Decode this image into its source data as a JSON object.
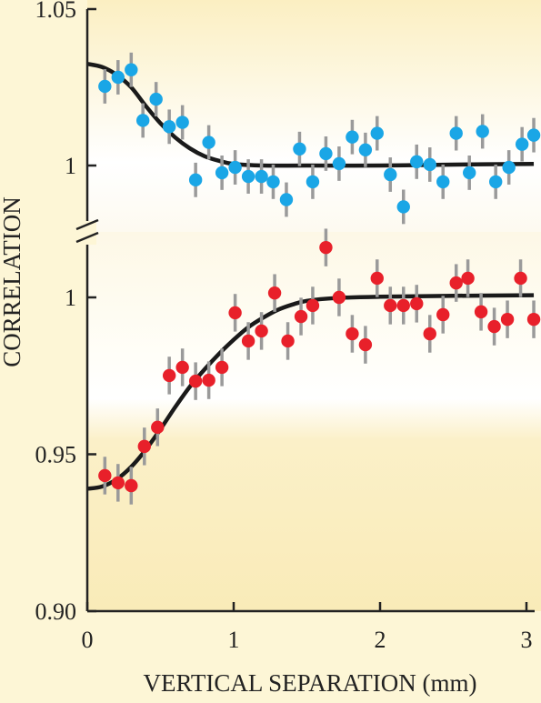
{
  "chart_data": [
    {
      "panel": "upper",
      "type": "scatter",
      "xlabel": "VERTICAL SEPARATION (mm)",
      "ylabel": "CORRELATION",
      "xlim": [
        0,
        3.05
      ],
      "ylim": [
        0.97,
        1.05
      ],
      "x_ticks": [
        {
          "value": 0,
          "label": "0"
        },
        {
          "value": 1,
          "label": "1"
        },
        {
          "value": 2,
          "label": "2"
        },
        {
          "value": 3,
          "label": "3"
        }
      ],
      "y_ticks": [
        {
          "value": 1.05,
          "label": "1.05"
        },
        {
          "value": 1.0,
          "label": "1"
        }
      ],
      "point_color": "#1aa6e6",
      "errorbar_color": "#9a9a9a",
      "fit_color": "#1a1a1a",
      "fit_curve": {
        "x": [
          0,
          0.1,
          0.2,
          0.3,
          0.4,
          0.5,
          0.6,
          0.7,
          0.8,
          0.9,
          1.0,
          1.2,
          1.5,
          2.0,
          2.5,
          3.05
        ],
        "y": [
          1.0325,
          1.0315,
          1.029,
          1.025,
          1.019,
          1.0135,
          1.009,
          1.0055,
          1.003,
          1.0015,
          1.0005,
          1.0,
          1.0,
          1.0,
          1.0003,
          1.0005
        ]
      },
      "points": [
        {
          "x": 0.12,
          "y": 1.0253,
          "err": 0.0055
        },
        {
          "x": 0.21,
          "y": 1.0282,
          "err": 0.0055
        },
        {
          "x": 0.3,
          "y": 1.0306,
          "err": 0.0055
        },
        {
          "x": 0.38,
          "y": 1.0144,
          "err": 0.0055
        },
        {
          "x": 0.47,
          "y": 1.0212,
          "err": 0.0055
        },
        {
          "x": 0.56,
          "y": 1.0124,
          "err": 0.0055
        },
        {
          "x": 0.65,
          "y": 1.0138,
          "err": 0.0055
        },
        {
          "x": 0.74,
          "y": 0.9954,
          "err": 0.0055
        },
        {
          "x": 0.83,
          "y": 1.0074,
          "err": 0.0055
        },
        {
          "x": 0.92,
          "y": 0.9977,
          "err": 0.0055
        },
        {
          "x": 1.01,
          "y": 0.9994,
          "err": 0.0055
        },
        {
          "x": 1.1,
          "y": 0.9965,
          "err": 0.0055
        },
        {
          "x": 1.19,
          "y": 0.9965,
          "err": 0.0055
        },
        {
          "x": 1.27,
          "y": 0.9948,
          "err": 0.0055
        },
        {
          "x": 1.36,
          "y": 0.9891,
          "err": 0.0055
        },
        {
          "x": 1.45,
          "y": 1.0053,
          "err": 0.0055
        },
        {
          "x": 1.54,
          "y": 0.9948,
          "err": 0.0055
        },
        {
          "x": 1.63,
          "y": 1.0038,
          "err": 0.0055
        },
        {
          "x": 1.72,
          "y": 1.0006,
          "err": 0.0055
        },
        {
          "x": 1.81,
          "y": 1.0091,
          "err": 0.0055
        },
        {
          "x": 1.9,
          "y": 1.005,
          "err": 0.0055
        },
        {
          "x": 1.98,
          "y": 1.0103,
          "err": 0.0055
        },
        {
          "x": 2.07,
          "y": 0.9971,
          "err": 0.0055
        },
        {
          "x": 2.16,
          "y": 0.9868,
          "err": 0.0055
        },
        {
          "x": 2.25,
          "y": 1.0012,
          "err": 0.0055
        },
        {
          "x": 2.34,
          "y": 1.0003,
          "err": 0.0055
        },
        {
          "x": 2.43,
          "y": 0.9948,
          "err": 0.0055
        },
        {
          "x": 2.52,
          "y": 1.0103,
          "err": 0.0055
        },
        {
          "x": 2.61,
          "y": 0.9977,
          "err": 0.0055
        },
        {
          "x": 2.7,
          "y": 1.0109,
          "err": 0.0055
        },
        {
          "x": 2.79,
          "y": 0.9948,
          "err": 0.0055
        },
        {
          "x": 2.88,
          "y": 0.9994,
          "err": 0.0055
        },
        {
          "x": 2.97,
          "y": 1.0068,
          "err": 0.0055
        },
        {
          "x": 3.05,
          "y": 1.0097,
          "err": 0.0055
        }
      ]
    },
    {
      "panel": "lower",
      "type": "scatter",
      "xlabel": "VERTICAL SEPARATION (mm)",
      "ylabel": "CORRELATION",
      "xlim": [
        0,
        3.05
      ],
      "ylim": [
        0.9,
        1.018
      ],
      "x_ticks": [
        {
          "value": 0,
          "label": "0"
        },
        {
          "value": 1,
          "label": "1"
        },
        {
          "value": 2,
          "label": "2"
        },
        {
          "value": 3,
          "label": "3"
        }
      ],
      "y_ticks": [
        {
          "value": 1.0,
          "label": "1"
        },
        {
          "value": 0.95,
          "label": "0.95"
        },
        {
          "value": 0.9,
          "label": "0.90"
        }
      ],
      "point_color": "#e8202a",
      "errorbar_color": "#9a9a9a",
      "fit_color": "#1a1a1a",
      "fit_curve": {
        "x": [
          0,
          0.1,
          0.2,
          0.3,
          0.4,
          0.5,
          0.6,
          0.7,
          0.8,
          0.9,
          1.0,
          1.1,
          1.2,
          1.3,
          1.4,
          1.5,
          1.7,
          2.0,
          2.5,
          3.05
        ],
        "y": [
          0.939,
          0.9397,
          0.942,
          0.946,
          0.9515,
          0.958,
          0.965,
          0.9715,
          0.977,
          0.982,
          0.9865,
          0.9905,
          0.9935,
          0.996,
          0.9977,
          0.9989,
          0.9998,
          1.0002,
          1.0005,
          1.0007
        ]
      },
      "points": [
        {
          "x": 0.12,
          "y": 0.9432,
          "err": 0.006
        },
        {
          "x": 0.21,
          "y": 0.9409,
          "err": 0.006
        },
        {
          "x": 0.3,
          "y": 0.94,
          "err": 0.006
        },
        {
          "x": 0.39,
          "y": 0.9525,
          "err": 0.006
        },
        {
          "x": 0.48,
          "y": 0.9586,
          "err": 0.006
        },
        {
          "x": 0.56,
          "y": 0.9751,
          "err": 0.006
        },
        {
          "x": 0.65,
          "y": 0.9777,
          "err": 0.006
        },
        {
          "x": 0.74,
          "y": 0.9733,
          "err": 0.006
        },
        {
          "x": 0.83,
          "y": 0.9736,
          "err": 0.006
        },
        {
          "x": 0.92,
          "y": 0.9777,
          "err": 0.006
        },
        {
          "x": 1.01,
          "y": 0.9951,
          "err": 0.006
        },
        {
          "x": 1.1,
          "y": 0.9861,
          "err": 0.006
        },
        {
          "x": 1.19,
          "y": 0.9893,
          "err": 0.006
        },
        {
          "x": 1.28,
          "y": 1.0014,
          "err": 0.006
        },
        {
          "x": 1.37,
          "y": 0.9861,
          "err": 0.006
        },
        {
          "x": 1.46,
          "y": 0.9939,
          "err": 0.006
        },
        {
          "x": 1.54,
          "y": 0.9974,
          "err": 0.006
        },
        {
          "x": 1.63,
          "y": 1.0159,
          "err": 0.006
        },
        {
          "x": 1.72,
          "y": 1.0,
          "err": 0.006
        },
        {
          "x": 1.81,
          "y": 0.9884,
          "err": 0.006
        },
        {
          "x": 1.9,
          "y": 0.9849,
          "err": 0.006
        },
        {
          "x": 1.98,
          "y": 1.0061,
          "err": 0.006
        },
        {
          "x": 2.07,
          "y": 0.9974,
          "err": 0.006
        },
        {
          "x": 2.16,
          "y": 0.9974,
          "err": 0.006
        },
        {
          "x": 2.25,
          "y": 0.998,
          "err": 0.006
        },
        {
          "x": 2.34,
          "y": 0.9884,
          "err": 0.006
        },
        {
          "x": 2.43,
          "y": 0.9945,
          "err": 0.006
        },
        {
          "x": 2.52,
          "y": 1.0046,
          "err": 0.006
        },
        {
          "x": 2.6,
          "y": 1.0061,
          "err": 0.006
        },
        {
          "x": 2.69,
          "y": 0.9954,
          "err": 0.006
        },
        {
          "x": 2.78,
          "y": 0.9907,
          "err": 0.006
        },
        {
          "x": 2.87,
          "y": 0.993,
          "err": 0.006
        },
        {
          "x": 2.96,
          "y": 1.0061,
          "err": 0.006
        },
        {
          "x": 3.05,
          "y": 0.993,
          "err": 0.006
        }
      ]
    }
  ],
  "colors": {
    "background": "#fdf6d6",
    "axis": "#222222"
  }
}
